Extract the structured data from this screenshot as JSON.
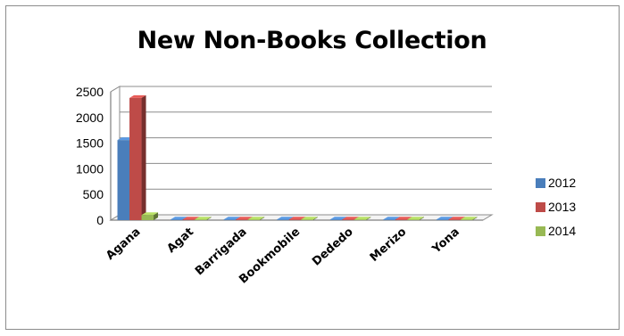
{
  "chart_data": {
    "type": "bar",
    "title": "New Non-Books Collection",
    "categories": [
      "Agana",
      "Agat",
      "Barrigada",
      "Bookmobile",
      "Dededo",
      "Merizo",
      "Yona"
    ],
    "series": [
      {
        "name": "2012",
        "color": "#4a7ebb",
        "values": [
          1560,
          0,
          0,
          0,
          0,
          0,
          0
        ]
      },
      {
        "name": "2013",
        "color": "#be4b48",
        "values": [
          2380,
          0,
          0,
          0,
          0,
          0,
          0
        ]
      },
      {
        "name": "2014",
        "color": "#98b954",
        "values": [
          100,
          0,
          0,
          0,
          0,
          0,
          0
        ]
      }
    ],
    "yticks": [
      "0",
      "500",
      "1000",
      "1500",
      "2000",
      "2500"
    ],
    "ylim": [
      0,
      2500
    ],
    "grid": true,
    "legend": "right",
    "style": "3d-clustered-column"
  }
}
